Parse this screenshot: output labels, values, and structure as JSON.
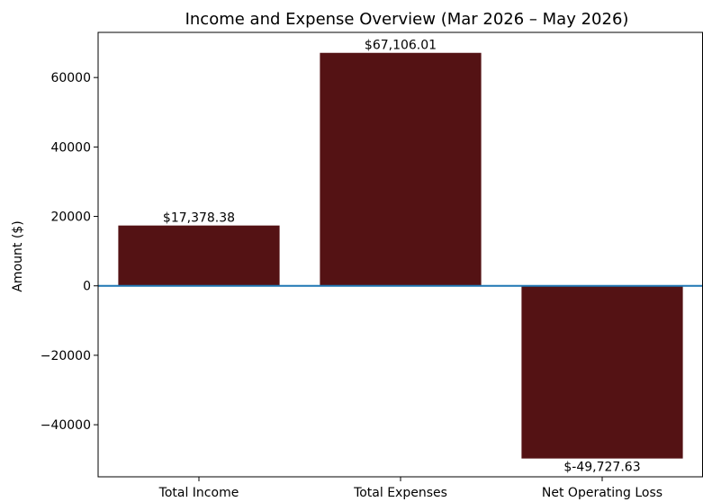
{
  "chart_data": {
    "type": "bar",
    "title": "Income and Expense Overview (Mar 2026 – May 2026)",
    "xlabel": "",
    "ylabel": "Amount ($)",
    "categories": [
      "Total Income",
      "Total Expenses",
      "Net Operating Loss"
    ],
    "values": [
      17378.38,
      67106.01,
      -49727.63
    ],
    "data_labels": [
      "$17,378.38",
      "$67,106.01",
      "$-49,727.63"
    ],
    "ylim": [
      -55000,
      73000
    ],
    "yticks": [
      -40000,
      -20000,
      0,
      20000,
      40000,
      60000
    ],
    "ytick_labels": [
      "−40000",
      "−20000",
      "0",
      "20000",
      "40000",
      "60000"
    ],
    "zero_line": true,
    "grid": false,
    "colors": {
      "bar": "#541214",
      "zero_line": "#1f77b4",
      "axes": "#000000"
    }
  }
}
